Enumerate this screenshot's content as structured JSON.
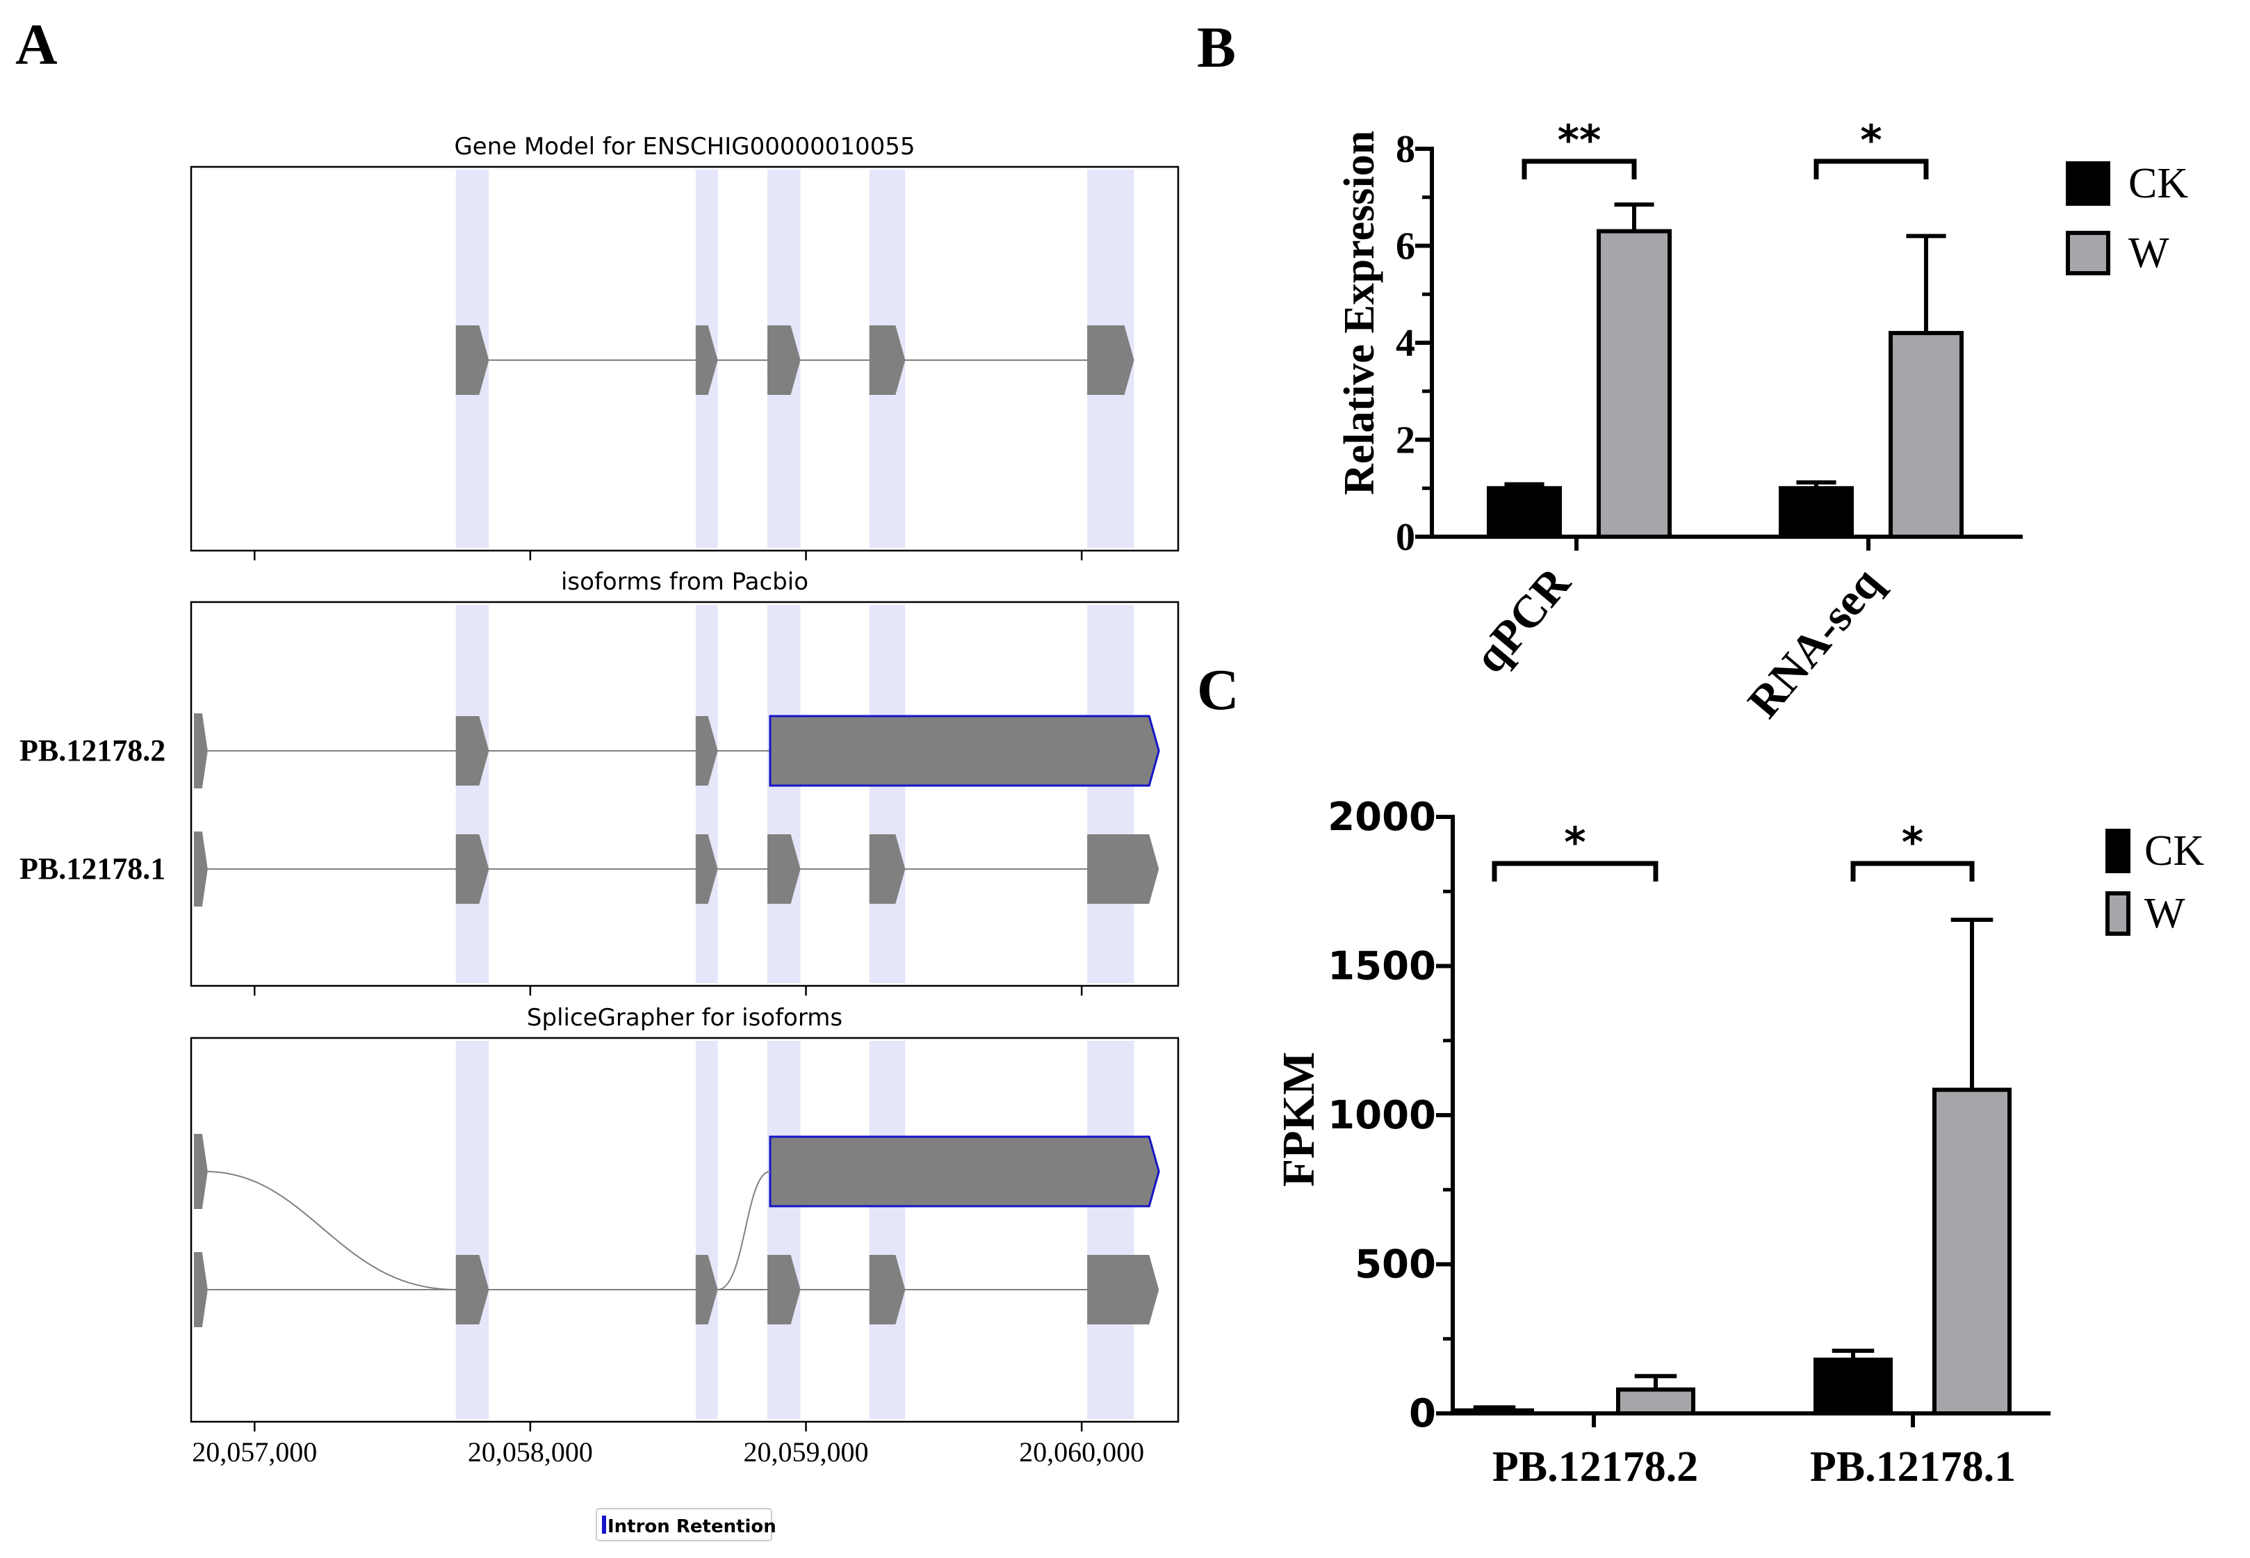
{
  "panel_labels": {
    "a": "A",
    "b": "B",
    "c": "C"
  },
  "colors": {
    "exon": "#808080",
    "exon_highlight": "#e6e6fa",
    "intron_retention": "#1515c8",
    "ck": "#000000",
    "w": "#a6a6aa",
    "line": "#808080"
  },
  "gene_panels": [
    {
      "title": "Gene Model for ENSCHIG00000010055",
      "tracks": [
        {
          "label": ""
        }
      ]
    },
    {
      "title": "isoforms from Pacbio",
      "tracks": [
        {
          "label": "PB.12178.2"
        },
        {
          "label": "PB.12178.1"
        }
      ]
    },
    {
      "title": "SpliceGrapher for isoforms",
      "tracks": [
        {
          "label": ""
        },
        {
          "label": ""
        }
      ]
    }
  ],
  "genomic_axis": {
    "range": [
      20056770,
      20060350
    ],
    "ticks": [
      20057000,
      20058000,
      20059000,
      20060000
    ],
    "tick_labels": [
      "20,057,000",
      "20,058,000",
      "20,059,000",
      "20,060,000"
    ],
    "highlight_exons": [
      [
        20057730,
        20057850
      ],
      [
        20058600,
        20058680
      ],
      [
        20058860,
        20058980
      ],
      [
        20059230,
        20059360
      ],
      [
        20060020,
        20060190
      ]
    ]
  },
  "legend_a": {
    "label": "Intron Retention"
  },
  "chart_data": [
    {
      "type": "bar",
      "panel": "B",
      "categories": [
        "qPCR",
        "RNA-seq"
      ],
      "series": [
        {
          "name": "CK",
          "values": [
            1.0,
            1.0
          ],
          "errors": [
            0.08,
            0.12
          ]
        },
        {
          "name": "W",
          "values": [
            6.3,
            4.2
          ],
          "errors": [
            0.55,
            2.0
          ]
        }
      ],
      "ylabel": "Relative Expression",
      "ylim": [
        0,
        8
      ],
      "yticks": [
        0,
        2,
        4,
        6,
        8
      ],
      "ytick_labels": [
        "0",
        "2",
        "4",
        "6",
        "8"
      ],
      "significance": [
        "**",
        "*"
      ],
      "legend": [
        "CK",
        "W"
      ]
    },
    {
      "type": "bar",
      "panel": "C",
      "categories": [
        "PB.12178.2",
        "PB.12178.1"
      ],
      "series": [
        {
          "name": "CK",
          "values": [
            10,
            180
          ],
          "errors": [
            10,
            30
          ]
        },
        {
          "name": "W",
          "values": [
            80,
            1085
          ],
          "errors": [
            45,
            570
          ]
        }
      ],
      "ylabel": "FPKM",
      "ylim": [
        0,
        2000
      ],
      "yticks": [
        0,
        500,
        1000,
        1500,
        2000
      ],
      "ytick_labels": [
        "0",
        "500",
        "1000",
        "1500",
        "2000"
      ],
      "significance": [
        "*",
        "*"
      ],
      "legend": [
        "CK",
        "W"
      ]
    }
  ]
}
